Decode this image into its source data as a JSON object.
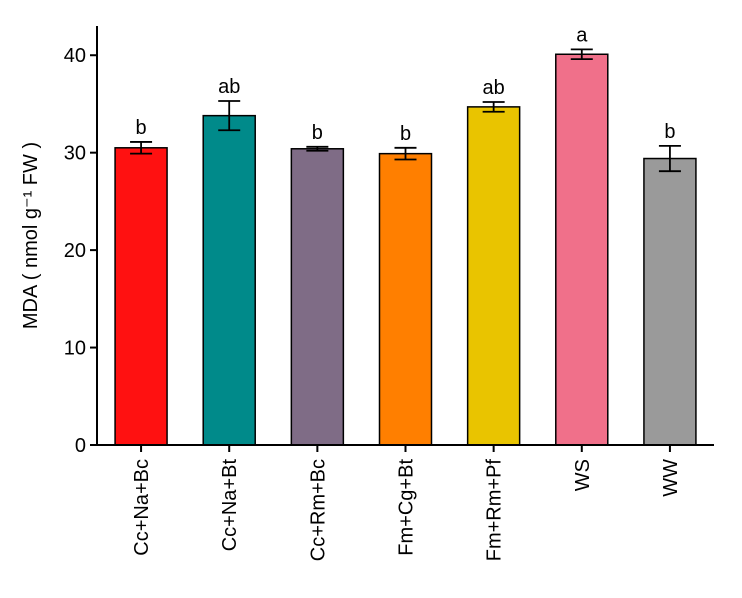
{
  "chart_data": {
    "type": "bar",
    "title": "",
    "ylabel": "MDA ( nmol g⁻¹ FW )",
    "xlabel": "",
    "ylim": [
      0,
      43
    ],
    "yticks": [
      0,
      10,
      20,
      30,
      40
    ],
    "grid": false,
    "categories": [
      "Cc+Na+Bc",
      "Cc+Na+Bt",
      "Cc+Rm+Bc",
      "Fm+Cg+Bt",
      "Fm+Rm+Pf",
      "WS",
      "WW"
    ],
    "values": [
      30.5,
      33.8,
      30.4,
      29.9,
      34.7,
      40.1,
      29.4
    ],
    "errors": [
      0.6,
      1.5,
      0.2,
      0.6,
      0.5,
      0.5,
      1.3
    ],
    "significance": [
      "b",
      "ab",
      "b",
      "b",
      "ab",
      "a",
      "b"
    ],
    "colors": [
      "#ff1111",
      "#008a8a",
      "#7f6c86",
      "#ff7f00",
      "#e9c400",
      "#f0708a",
      "#9a9a9a"
    ]
  }
}
